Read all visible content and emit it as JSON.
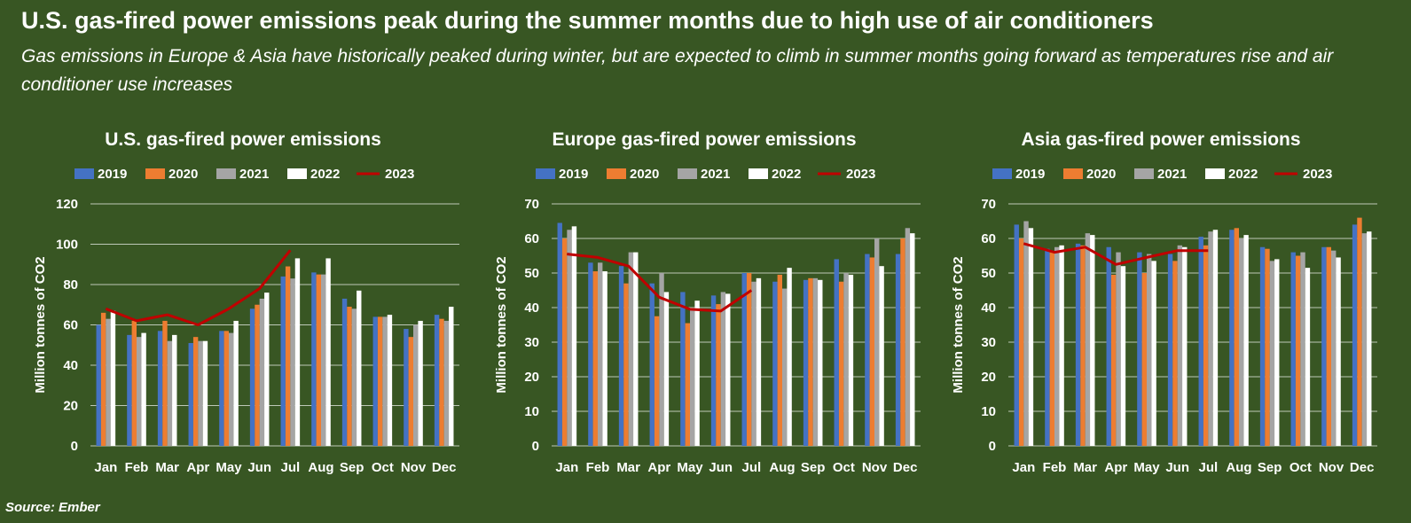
{
  "title": "U.S. gas-fired power emissions peak during the summer months due to high use of air conditioners",
  "subtitle": "Gas emissions in Europe & Asia have historically peaked during winter, but are expected to climb in summer months going forward as temperatures rise and air conditioner use increases",
  "source": "Source: Ember",
  "colors": {
    "background": "#385623",
    "2019": "#4472C4",
    "2020": "#ED7D31",
    "2021": "#A5A5A5",
    "2022": "#FFFFFF",
    "2023": "#C00000",
    "gridline": "#FFFFFF"
  },
  "chart_data": [
    {
      "type": "bar",
      "title": "U.S. gas-fired power emissions",
      "ylabel": "Million tonnes of CO2",
      "xlabel": "",
      "ylim": [
        0,
        120
      ],
      "yticks": [
        0,
        20,
        40,
        60,
        80,
        100,
        120
      ],
      "categories": [
        "Jan",
        "Feb",
        "Mar",
        "Apr",
        "May",
        "Jun",
        "Jul",
        "Aug",
        "Sep",
        "Oct",
        "Nov",
        "Dec"
      ],
      "legend": [
        "2019",
        "2020",
        "2021",
        "2022",
        "2023"
      ],
      "series": [
        {
          "name": "2019",
          "kind": "bar",
          "values": [
            60,
            55,
            57,
            51,
            57,
            68,
            84,
            86,
            73,
            64,
            58,
            65
          ]
        },
        {
          "name": "2020",
          "kind": "bar",
          "values": [
            66,
            62,
            62,
            54,
            57,
            70,
            89,
            85,
            69,
            64,
            54,
            63
          ]
        },
        {
          "name": "2021",
          "kind": "bar",
          "values": [
            63,
            54,
            52,
            52,
            56,
            73,
            83,
            85,
            68,
            64,
            60,
            62
          ]
        },
        {
          "name": "2022",
          "kind": "bar",
          "values": [
            67,
            56,
            55,
            52,
            62,
            76,
            93,
            93,
            77,
            65,
            62,
            69
          ]
        },
        {
          "name": "2023",
          "kind": "line",
          "values": [
            68,
            62,
            65,
            60,
            68,
            78,
            97,
            null,
            null,
            null,
            null,
            null
          ]
        }
      ]
    },
    {
      "type": "bar",
      "title": "Europe gas-fired power emissions",
      "ylabel": "Million tonnes of CO2",
      "xlabel": "",
      "ylim": [
        0,
        70
      ],
      "yticks": [
        0,
        10,
        20,
        30,
        40,
        50,
        60,
        70
      ],
      "categories": [
        "Jan",
        "Feb",
        "Mar",
        "Apr",
        "May",
        "Jun",
        "Jul",
        "Aug",
        "Sep",
        "Oct",
        "Nov",
        "Dec"
      ],
      "legend": [
        "2019",
        "2020",
        "2021",
        "2022",
        "2023"
      ],
      "series": [
        {
          "name": "2019",
          "kind": "bar",
          "values": [
            64.5,
            53,
            52,
            47,
            44.5,
            43.5,
            50,
            47.5,
            48,
            54,
            55.5,
            55.5
          ]
        },
        {
          "name": "2020",
          "kind": "bar",
          "values": [
            60,
            50.5,
            47,
            37.5,
            35.5,
            41,
            50,
            49.5,
            48.5,
            47.5,
            54.5,
            60
          ]
        },
        {
          "name": "2021",
          "kind": "bar",
          "values": [
            62.5,
            53,
            56,
            50,
            39.5,
            44.5,
            47.5,
            45.5,
            48.5,
            50,
            60,
            63
          ]
        },
        {
          "name": "2022",
          "kind": "bar",
          "values": [
            63.5,
            50.5,
            56,
            44.5,
            42,
            44,
            48.5,
            51.5,
            48,
            49.5,
            52,
            61.5
          ]
        },
        {
          "name": "2023",
          "kind": "line",
          "values": [
            55.5,
            54.5,
            52,
            43,
            39.5,
            39,
            45,
            null,
            null,
            null,
            null,
            null
          ]
        }
      ]
    },
    {
      "type": "bar",
      "title": "Asia gas-fired power emissions",
      "ylabel": "Million tonnes of CO2",
      "xlabel": "",
      "ylim": [
        0,
        70
      ],
      "yticks": [
        0,
        10,
        20,
        30,
        40,
        50,
        60,
        70
      ],
      "categories": [
        "Jan",
        "Feb",
        "Mar",
        "Apr",
        "May",
        "Jun",
        "Jul",
        "Aug",
        "Sep",
        "Oct",
        "Nov",
        "Dec"
      ],
      "legend": [
        "2019",
        "2020",
        "2021",
        "2022",
        "2023"
      ],
      "series": [
        {
          "name": "2019",
          "kind": "bar",
          "values": [
            64,
            57,
            58.5,
            57.5,
            56,
            55.5,
            60.5,
            62.5,
            57.5,
            56,
            57.5,
            64
          ]
        },
        {
          "name": "2020",
          "kind": "bar",
          "values": [
            60,
            56,
            58,
            49.5,
            50,
            53.5,
            58,
            63,
            57,
            55,
            57.5,
            66
          ]
        },
        {
          "name": "2021",
          "kind": "bar",
          "values": [
            65,
            57.5,
            61.5,
            56,
            55.5,
            58,
            62,
            60,
            53.5,
            56,
            56.5,
            61.5
          ]
        },
        {
          "name": "2022",
          "kind": "bar",
          "values": [
            63,
            58,
            61,
            52,
            53.5,
            57.5,
            62.5,
            61,
            54,
            51.5,
            54.5,
            62
          ]
        },
        {
          "name": "2023",
          "kind": "line",
          "values": [
            58.5,
            56,
            57.5,
            52.5,
            54.5,
            56.5,
            56.5,
            null,
            null,
            null,
            null,
            null
          ]
        }
      ]
    }
  ]
}
